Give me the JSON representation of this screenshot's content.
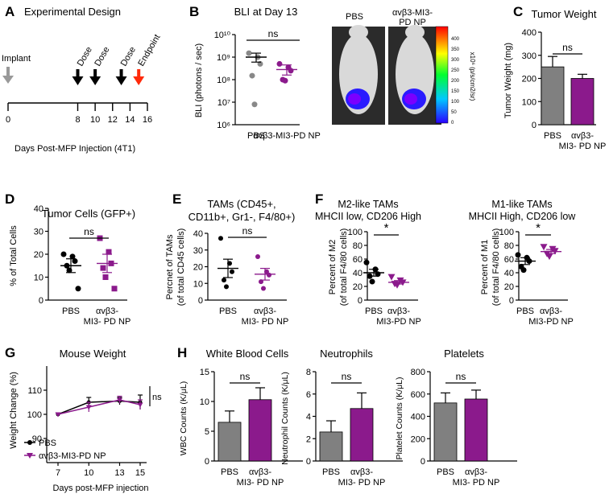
{
  "panel_letters": [
    "A",
    "B",
    "C",
    "D",
    "E",
    "F",
    "G",
    "H"
  ],
  "colors": {
    "pbs": "#000000",
    "np": "#8b1a8c",
    "bar_pbs": "#808080",
    "bar_np": "#8b1a8c",
    "red": "#ff2a0a",
    "implant": "#999999"
  },
  "panel_a": {
    "title": "Experimental Design",
    "implant_label": "Implant",
    "event_labels": [
      "Dose",
      "Dose",
      "Dose",
      "Endpoint"
    ],
    "event_days": [
      8,
      10,
      13,
      15
    ],
    "tick_values": [
      0,
      8,
      10,
      12,
      14,
      16
    ],
    "tick_labels": [
      "0",
      "8",
      "10",
      "12",
      "14",
      "16"
    ],
    "xlabel": "Days Post-MFP Injection (4T1)"
  },
  "panel_b": {
    "image_labels": [
      "PBS",
      "αvβ3-MI3-PD NP"
    ],
    "colorbar_ticks": [
      "400",
      "350",
      "300",
      "250",
      "200",
      "150",
      "100",
      "50",
      "0"
    ],
    "colorbar_label": "x10⁶ (p/s/cm2/sr)"
  },
  "chart_data": [
    {
      "id": "B",
      "type": "scatter",
      "scale": "log",
      "title": "BLI at Day 13",
      "ylabel": "BLI (photons / sec)",
      "ylim": [
        1000000,
        10000000000
      ],
      "ytick_labels": [
        "10¹⁰",
        "10⁹",
        "10⁸",
        "10⁷",
        "10⁶"
      ],
      "ytick_values": [
        10000000000,
        1000000000,
        100000000,
        10000000,
        1000000
      ],
      "categories": [
        "PBS",
        "αvβ3-MI3-PD NP"
      ],
      "series": [
        {
          "name": "PBS",
          "values": [
            1500000000,
            1000000000,
            500000000,
            150000000,
            8000000
          ],
          "mean": 1000000000,
          "sem_low": 600000000,
          "sem_high": 1500000000,
          "marker": "circle",
          "color": "#888888"
        },
        {
          "name": "αvβ3-MI3-PD NP",
          "values": [
            500000000,
            350000000,
            250000000,
            100000000,
            90000000
          ],
          "mean": 280000000,
          "sem_low": 160000000,
          "sem_high": 450000000,
          "marker": "circle",
          "color": "#8b1a8c"
        }
      ],
      "sig": "ns"
    },
    {
      "id": "C",
      "type": "bar",
      "title": "Tumor Weight",
      "ylabel": "Tumor Weight (mg)",
      "ylim": [
        0,
        400
      ],
      "ytick_values": [
        0,
        100,
        200,
        300,
        400
      ],
      "categories": [
        "PBS",
        "αvβ3-MI3-PD NP"
      ],
      "cat_lines": [
        [
          "PBS"
        ],
        [
          "αvβ3-",
          "MI3- PD NP"
        ]
      ],
      "values": [
        250,
        200
      ],
      "errors": [
        45,
        18
      ],
      "sig": "ns"
    },
    {
      "id": "D",
      "type": "scatter",
      "title": "Tumor Cells (GFP+)",
      "ylabel": "% of Total Cells",
      "ylim": [
        0,
        40
      ],
      "ytick_values": [
        0,
        10,
        20,
        30,
        40
      ],
      "categories": [
        "PBS",
        "αvβ3-MI3-PD NP"
      ],
      "cat_lines": [
        [
          "PBS"
        ],
        [
          "αvβ3-",
          "MI3- PD NP"
        ]
      ],
      "series": [
        {
          "name": "PBS",
          "values": [
            20,
            19,
            17,
            15,
            13,
            5
          ],
          "mean": 15,
          "sem": 3,
          "marker": "circle",
          "color": "#000000"
        },
        {
          "name": "αvβ3-MI3-PD NP",
          "values": [
            27,
            21,
            16,
            14,
            10,
            5
          ],
          "mean": 16,
          "sem": 4,
          "marker": "square",
          "color": "#8b1a8c"
        }
      ],
      "sig": "ns"
    },
    {
      "id": "E",
      "type": "scatter",
      "title_lines": [
        "TAMs (CD45+,",
        "CD11b+, Gr1-, F4/80+)"
      ],
      "ylabel_lines": [
        "Percnet of TAMs",
        "(of total CD45 cells)"
      ],
      "ylim": [
        0,
        40
      ],
      "ytick_values": [
        0,
        10,
        20,
        30,
        40
      ],
      "categories": [
        "PBS",
        "αvβ3-MI3-PD NP"
      ],
      "cat_lines": [
        [
          "PBS"
        ],
        [
          "αvβ3-",
          "MI3- PD NP"
        ]
      ],
      "series": [
        {
          "name": "PBS",
          "values": [
            37,
            22,
            17,
            12,
            8
          ],
          "mean": 19,
          "sem": 5.5,
          "marker": "circle",
          "color": "#000000"
        },
        {
          "name": "αvβ3-MI3-PD NP",
          "values": [
            26,
            17,
            15,
            11,
            7
          ],
          "mean": 15.5,
          "sem": 3.5,
          "marker": "circle",
          "color": "#8b1a8c"
        }
      ],
      "sig": "ns"
    },
    {
      "id": "F1",
      "type": "scatter",
      "title_lines": [
        "M2-like TAMs",
        "MHCII low,  CD206 High"
      ],
      "ylabel_lines": [
        "Percent of M2",
        "(of total F4/80 cells)"
      ],
      "ylim": [
        0,
        100
      ],
      "ytick_values": [
        0,
        20,
        40,
        60,
        80,
        100
      ],
      "categories": [
        "PBS",
        "αvβ3-MI3-PD NP"
      ],
      "cat_lines": [
        [
          "PBS"
        ],
        [
          "αvβ3-",
          "MI3-PD NP"
        ]
      ],
      "series": [
        {
          "name": "PBS",
          "values": [
            55,
            45,
            38,
            35,
            27
          ],
          "mean": 40,
          "sem": 5,
          "marker": "circle",
          "color": "#000000"
        },
        {
          "name": "αvβ3-MI3-PD NP",
          "values": [
            34,
            29,
            26,
            24,
            22
          ],
          "mean": 26,
          "sem": 2.5,
          "marker": "triangle-down",
          "color": "#8b1a8c"
        }
      ],
      "sig": "*"
    },
    {
      "id": "F2",
      "type": "scatter",
      "title_lines": [
        "M1-like TAMs",
        "MHCII High, CD206 low"
      ],
      "ylabel_lines": [
        "Percent of M1",
        "(of total F4/80 cells)"
      ],
      "ylim": [
        0,
        100
      ],
      "ytick_values": [
        0,
        20,
        40,
        60,
        80,
        100
      ],
      "categories": [
        "PBS",
        "αvβ3-MI3-PD NP"
      ],
      "cat_lines": [
        [
          "PBS"
        ],
        [
          "αvβ3-",
          "MI3-PD NP"
        ]
      ],
      "series": [
        {
          "name": "PBS",
          "values": [
            66,
            62,
            57,
            49,
            44
          ],
          "mean": 57,
          "sem": 5,
          "marker": "circle",
          "color": "#000000"
        },
        {
          "name": "αvβ3-MI3-PD NP",
          "values": [
            78,
            75,
            72,
            68,
            64
          ],
          "mean": 71,
          "sem": 3,
          "marker": "triangle-down",
          "color": "#8b1a8c"
        }
      ],
      "sig": "*"
    },
    {
      "id": "G",
      "type": "line",
      "title": "Mouse Weight",
      "ylabel": "Weight Change (%)",
      "xlabel": "Days post-MFP injection",
      "ylim": [
        80,
        120
      ],
      "ytick_values": [
        90,
        100,
        110
      ],
      "x": [
        7,
        10,
        13,
        15
      ],
      "series": [
        {
          "name": "PBS",
          "values": [
            100,
            105,
            105.5,
            105
          ],
          "errors": [
            0.5,
            2,
            1.5,
            3
          ],
          "marker": "circle",
          "color": "#000000"
        },
        {
          "name": "αvβ3-MI3-PD NP",
          "values": [
            100,
            103,
            106,
            104
          ],
          "errors": [
            0.5,
            2,
            1.5,
            2
          ],
          "marker": "triangle-down",
          "color": "#8b1a8c"
        }
      ],
      "sig": "ns"
    },
    {
      "id": "H1",
      "type": "bar",
      "title": "White Blood Cells",
      "ylabel": "WBC Counts (K/μL)",
      "ylim": [
        0,
        15
      ],
      "ytick_values": [
        0,
        5,
        10,
        15
      ],
      "categories": [
        "PBS",
        "αvβ3-MI3-PD NP"
      ],
      "cat_lines": [
        [
          "PBS"
        ],
        [
          "αvβ3-",
          "MI3- PD NP"
        ]
      ],
      "values": [
        6.5,
        10.3
      ],
      "errors": [
        1.9,
        2.0
      ],
      "sig": "ns"
    },
    {
      "id": "H2",
      "type": "bar",
      "title": "Neutrophils",
      "ylabel": "Neutrophil Counts (K/μL)",
      "ylim": [
        0,
        8
      ],
      "ytick_values": [
        0,
        2,
        4,
        6,
        8
      ],
      "categories": [
        "PBS",
        "αvβ3-MI3-PD NP"
      ],
      "cat_lines": [
        [
          "PBS"
        ],
        [
          "αvβ3-",
          "MI3- PD NP"
        ]
      ],
      "values": [
        2.6,
        4.7
      ],
      "errors": [
        1.0,
        1.4
      ],
      "sig": "ns"
    },
    {
      "id": "H3",
      "type": "bar",
      "title": "Platelets",
      "ylabel": "Platelet Counts (K/μL)",
      "ylim": [
        0,
        800
      ],
      "ytick_values": [
        0,
        200,
        400,
        600,
        800
      ],
      "categories": [
        "PBS",
        "αvβ3-MI3-PD NP"
      ],
      "cat_lines": [
        [
          "PBS"
        ],
        [
          "αvβ3-",
          "MI3- PD NP"
        ]
      ],
      "values": [
        520,
        555
      ],
      "errors": [
        90,
        80
      ],
      "sig": "ns"
    }
  ]
}
